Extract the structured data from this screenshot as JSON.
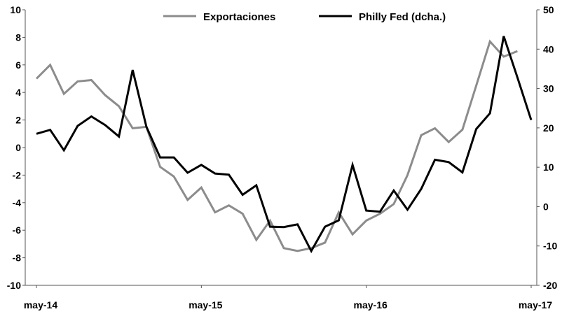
{
  "chart_data": {
    "type": "line",
    "title": "",
    "xlabel": "",
    "ylabel": "",
    "y2label": "",
    "x_ticks": [
      "may-14",
      "may-15",
      "may-16",
      "may-17"
    ],
    "ylim": [
      -10,
      10
    ],
    "y_ticks": [
      -10,
      -8,
      -6,
      -4,
      -2,
      0,
      2,
      4,
      6,
      8,
      10
    ],
    "y2lim": [
      -20,
      50
    ],
    "y2_ticks": [
      -20,
      -10,
      0,
      10,
      20,
      30,
      40,
      50
    ],
    "grid": false,
    "legend_position": "top",
    "series": [
      {
        "name": "Exportaciones",
        "axis": "left",
        "color": "#8c8c8c",
        "x": [
          "may-14",
          "jun-14",
          "jul-14",
          "ago-14",
          "sep-14",
          "oct-14",
          "nov-14",
          "dic-14",
          "ene-15",
          "feb-15",
          "mar-15",
          "abr-15",
          "may-15",
          "jun-15",
          "jul-15",
          "ago-15",
          "sep-15",
          "oct-15",
          "nov-15",
          "dic-15",
          "ene-16",
          "feb-16",
          "mar-16",
          "abr-16",
          "may-16",
          "jun-16",
          "jul-16",
          "ago-16",
          "sep-16",
          "oct-16",
          "nov-16",
          "dic-16",
          "ene-17",
          "feb-17",
          "mar-17",
          "abr-17"
        ],
        "values": [
          5.0,
          6.0,
          3.9,
          4.8,
          4.9,
          3.8,
          3.0,
          1.4,
          1.5,
          -1.4,
          -2.1,
          -3.8,
          -2.9,
          -4.7,
          -4.2,
          -4.8,
          -6.7,
          -5.3,
          -7.3,
          -7.5,
          -7.3,
          -6.9,
          -4.7,
          -6.3,
          -5.3,
          -4.8,
          -4.1,
          -2.0,
          0.9,
          1.4,
          0.4,
          1.3,
          4.5,
          7.7,
          6.6,
          7.0
        ]
      },
      {
        "name": "Philly Fed (dcha.)",
        "axis": "right",
        "color": "#000000",
        "x": [
          "may-14",
          "jun-14",
          "jul-14",
          "ago-14",
          "sep-14",
          "oct-14",
          "nov-14",
          "dic-14",
          "ene-15",
          "feb-15",
          "mar-15",
          "abr-15",
          "may-15",
          "jun-15",
          "jul-15",
          "ago-15",
          "sep-15",
          "oct-15",
          "nov-15",
          "dic-15",
          "ene-16",
          "feb-16",
          "mar-16",
          "abr-16",
          "may-16",
          "jun-16",
          "jul-16",
          "ago-16",
          "sep-16",
          "oct-16",
          "nov-16",
          "dic-16",
          "ene-17",
          "feb-17",
          "mar-17",
          "abr-17",
          "may-17"
        ],
        "values": [
          18.5,
          19.5,
          14.3,
          20.5,
          22.9,
          20.7,
          17.8,
          34.7,
          20.3,
          12.5,
          12.5,
          8.6,
          10.6,
          8.4,
          8.1,
          3.0,
          5.4,
          -5.1,
          -5.2,
          -4.5,
          -11.3,
          -5.1,
          -3.5,
          10.6,
          -1.0,
          -1.3,
          4.1,
          -0.8,
          4.5,
          11.9,
          11.3,
          8.7,
          19.7,
          23.7,
          43.3,
          32.8,
          22.0
        ]
      }
    ]
  }
}
